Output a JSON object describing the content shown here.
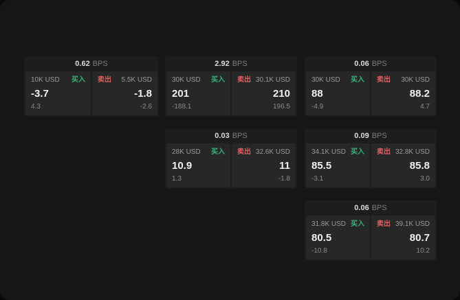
{
  "labels": {
    "bps": "BPS",
    "buy": "买入",
    "sell": "卖出"
  },
  "colors": {
    "buy": "#35b379",
    "sell": "#e15f5f"
  },
  "cards": [
    {
      "bps": "0.62",
      "buy": {
        "amount": "10K USD",
        "price": "-3.7",
        "delta": "4.3"
      },
      "sell": {
        "amount": "5.5K USD",
        "price": "-1.8",
        "delta": "-2.6"
      }
    },
    {
      "bps": "2.92",
      "buy": {
        "amount": "30K USD",
        "price": "201",
        "delta": "-188.1"
      },
      "sell": {
        "amount": "30.1K USD",
        "price": "210",
        "delta": "196.5"
      }
    },
    {
      "bps": "0.06",
      "buy": {
        "amount": "30K USD",
        "price": "88",
        "delta": "-4.9"
      },
      "sell": {
        "amount": "30K USD",
        "price": "88.2",
        "delta": "4.7"
      }
    },
    {
      "bps": "0.03",
      "buy": {
        "amount": "28K USD",
        "price": "10.9",
        "delta": "1.3"
      },
      "sell": {
        "amount": "32.6K USD",
        "price": "11",
        "delta": "-1.8"
      }
    },
    {
      "bps": "0.09",
      "buy": {
        "amount": "34.1K USD",
        "price": "85.5",
        "delta": "-3.1"
      },
      "sell": {
        "amount": "32.8K USD",
        "price": "85.8",
        "delta": "3.0"
      }
    },
    {
      "bps": "0.06",
      "buy": {
        "amount": "31.8K USD",
        "price": "80.5",
        "delta": "-10.8"
      },
      "sell": {
        "amount": "39.1K USD",
        "price": "80.7",
        "delta": "10.2"
      }
    }
  ]
}
